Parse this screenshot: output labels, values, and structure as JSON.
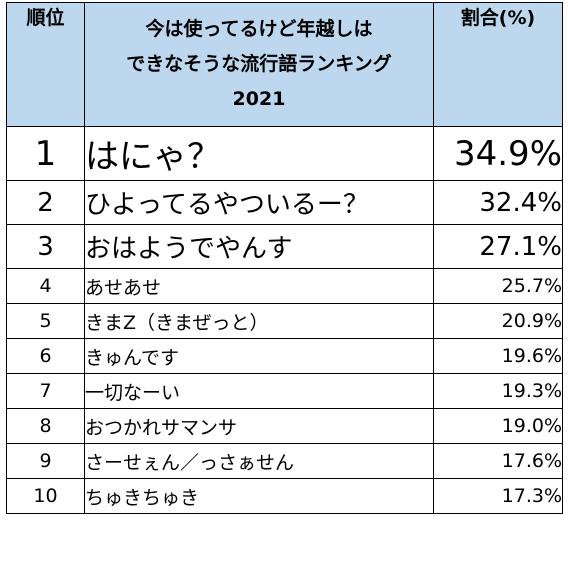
{
  "chart_data": {
    "type": "table",
    "title": "今は使ってるけど年越しはできなそうな流行語ランキング2021",
    "columns": [
      "順位",
      "今は使ってるけど年越しはできなそうな流行語ランキング2021",
      "割合(%)"
    ],
    "rows": [
      {
        "rank": "1",
        "word": "はにゃ？",
        "percent": "34.9%",
        "value": 34.9
      },
      {
        "rank": "2",
        "word": "ひよってるやついるー？",
        "percent": "32.4%",
        "value": 32.4
      },
      {
        "rank": "3",
        "word": "おはようでやんす",
        "percent": "27.1%",
        "value": 27.1
      },
      {
        "rank": "4",
        "word": "あせあせ",
        "percent": "25.7%",
        "value": 25.7
      },
      {
        "rank": "5",
        "word": "きまZ（きまぜっと）",
        "percent": "20.9%",
        "value": 20.9
      },
      {
        "rank": "6",
        "word": "きゅんです",
        "percent": "19.6%",
        "value": 19.6
      },
      {
        "rank": "7",
        "word": "一切なーい",
        "percent": "19.3%",
        "value": 19.3
      },
      {
        "rank": "8",
        "word": "おつかれサマンサ",
        "percent": "19.0%",
        "value": 19.0
      },
      {
        "rank": "9",
        "word": "さーせぇん／っさぁせん",
        "percent": "17.6%",
        "value": 17.6
      },
      {
        "rank": "10",
        "word": "ちゅきちゅき",
        "percent": "17.3%",
        "value": 17.3
      }
    ]
  },
  "header": {
    "rank": "順位",
    "title_lines": [
      "今は使ってるけど年越しは",
      "できなそうな流行語ランキング",
      "2021"
    ],
    "percent": "割合(%)"
  },
  "colors": {
    "header_bg": "#bdd7ee",
    "border": "#000000",
    "text": "#000000"
  }
}
